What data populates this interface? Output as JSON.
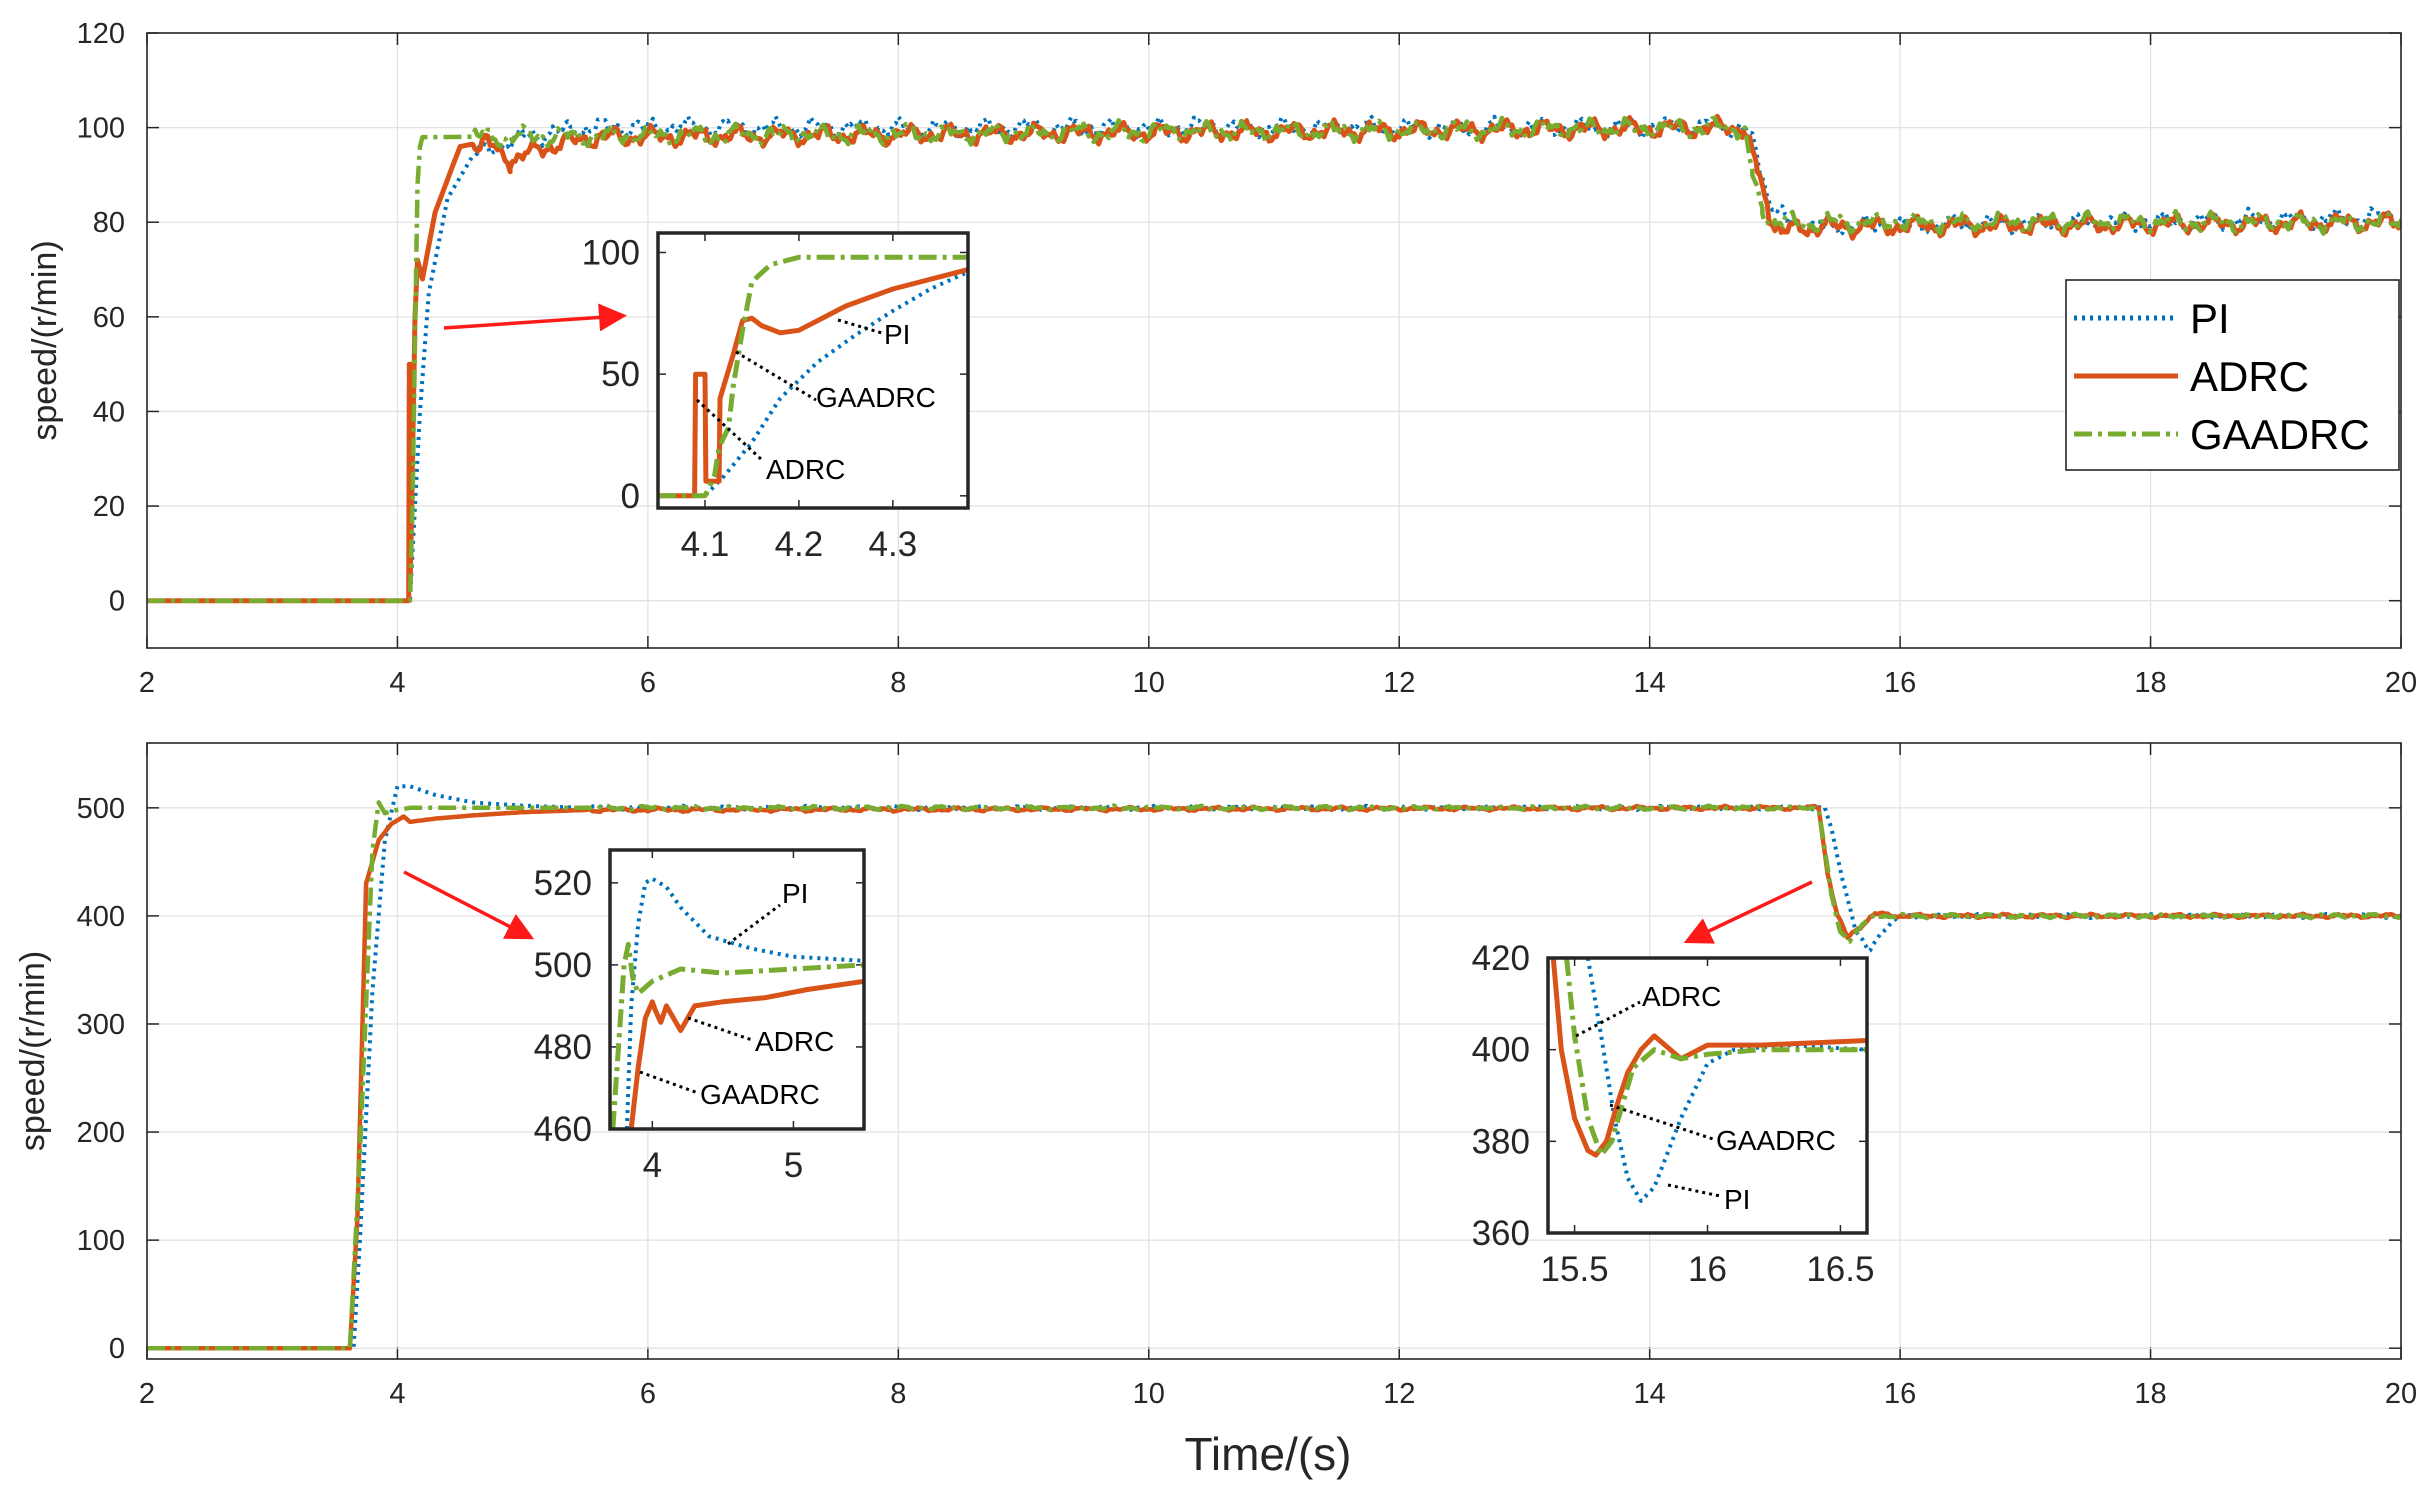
{
  "colors": {
    "PI": "#0072BD",
    "ADRC": "#D95319",
    "GAADRC": "#77AC30",
    "arrow": "#ff1a1a",
    "grid": "#e2e2e2",
    "axis": "#262626"
  },
  "legend": {
    "entries": [
      "PI",
      "ADRC",
      "GAADRC"
    ],
    "placement": "right"
  },
  "chart_data": [
    {
      "type": "line",
      "panel": "top",
      "title": "",
      "xlabel": "",
      "ylabel": "speed/(r/min)",
      "xlim": [
        2,
        20
      ],
      "ylim": [
        -10,
        120
      ],
      "xticks": [
        "2",
        "4",
        "6",
        "8",
        "10",
        "12",
        "14",
        "16",
        "18",
        "20"
      ],
      "yticks": [
        "0",
        "20",
        "40",
        "60",
        "80",
        "100",
        "120"
      ],
      "grid": true,
      "series": [
        {
          "name": "PI",
          "style": "dotted",
          "x": [
            2,
            4.1,
            4.12,
            4.18,
            4.25,
            4.4,
            4.6,
            5,
            5.5,
            14.75,
            14.85,
            14.95,
            15.1,
            15.4,
            20
          ],
          "y": [
            0,
            0,
            10,
            40,
            65,
            85,
            94,
            98,
            100,
            100,
            95,
            85,
            80,
            79,
            81
          ]
        },
        {
          "name": "ADRC",
          "style": "solid",
          "x": [
            2,
            4.09,
            4.095,
            4.1,
            4.103,
            4.12,
            4.14,
            4.16,
            4.2,
            4.3,
            4.5,
            4.7,
            4.9,
            5.2,
            5.6,
            14.75,
            14.85,
            14.95,
            15.05,
            15.3,
            20
          ],
          "y": [
            0,
            0,
            50,
            50,
            5,
            30,
            60,
            72,
            68,
            82,
            96,
            97,
            93,
            96,
            98,
            100,
            92,
            82,
            78,
            79,
            80
          ]
        },
        {
          "name": "GAADRC",
          "style": "dashdot",
          "x": [
            2,
            4.1,
            4.12,
            4.14,
            4.16,
            4.18,
            4.2,
            4.3,
            14.75,
            14.82,
            14.9,
            15,
            20
          ],
          "y": [
            0,
            0,
            20,
            55,
            88,
            96,
            98,
            98,
            100,
            90,
            82,
            80,
            80
          ]
        }
      ],
      "inset": {
        "xlim": [
          4.05,
          4.38
        ],
        "ylim": [
          -5,
          108
        ],
        "xticks": [
          "4.1",
          "4.2",
          "4.3"
        ],
        "yticks": [
          "0",
          "50",
          "100"
        ],
        "annotations": [
          "PI",
          "GAADRC",
          "ADRC"
        ],
        "series": [
          {
            "name": "PI",
            "x": [
              4.05,
              4.1,
              4.12,
              4.15,
              4.18,
              4.22,
              4.26,
              4.3,
              4.34,
              4.38
            ],
            "y": [
              0,
              0,
              8,
              22,
              40,
              55,
              66,
              76,
              85,
              92
            ]
          },
          {
            "name": "ADRC",
            "x": [
              4.05,
              4.089,
              4.09,
              4.1,
              4.101,
              4.115,
              4.116,
              4.13,
              4.14,
              4.15,
              4.16,
              4.18,
              4.2,
              4.25,
              4.3,
              4.38
            ],
            "y": [
              0,
              0,
              50,
              50,
              6,
              6,
              40,
              58,
              72,
              73,
              70,
              67,
              68,
              78,
              85,
              93
            ]
          },
          {
            "name": "GAADRC",
            "x": [
              4.05,
              4.1,
              4.11,
              4.115,
              4.125,
              4.13,
              4.14,
              4.15,
              4.17,
              4.2,
              4.25,
              4.3,
              4.38
            ],
            "y": [
              0,
              0,
              8,
              20,
              28,
              45,
              68,
              88,
              95,
              98,
              98,
              98,
              98
            ]
          }
        ]
      }
    },
    {
      "type": "line",
      "panel": "bottom",
      "title": "",
      "xlabel": "Time/(s)",
      "ylabel": "speed/(r/min)",
      "xlim": [
        2,
        20
      ],
      "ylim": [
        -10,
        560
      ],
      "xticks": [
        "2",
        "4",
        "6",
        "8",
        "10",
        "12",
        "14",
        "16",
        "18",
        "20"
      ],
      "yticks": [
        "0",
        "100",
        "200",
        "300",
        "400",
        "500"
      ],
      "grid": true,
      "series": [
        {
          "name": "PI",
          "style": "dotted",
          "x": [
            2,
            3.65,
            3.7,
            3.8,
            3.9,
            4,
            4.1,
            4.3,
            4.6,
            5,
            5.5,
            15.4,
            15.45,
            15.55,
            15.65,
            15.75,
            15.85,
            16,
            20
          ],
          "y": [
            0,
            0,
            100,
            330,
            470,
            520,
            520,
            512,
            505,
            502,
            500,
            500,
            480,
            430,
            385,
            367,
            385,
            400,
            400
          ]
        },
        {
          "name": "ADRC",
          "style": "solid",
          "x": [
            2,
            3.62,
            3.68,
            3.75,
            3.85,
            3.95,
            4.05,
            4.1,
            4.3,
            4.6,
            5,
            5.5,
            15.35,
            15.42,
            15.5,
            15.58,
            15.68,
            15.8,
            16,
            20
          ],
          "y": [
            0,
            0,
            120,
            430,
            470,
            485,
            492,
            487,
            490,
            493,
            496,
            498,
            500,
            440,
            400,
            380,
            390,
            402,
            400,
            400
          ]
        },
        {
          "name": "GAADRC",
          "style": "dashdot",
          "x": [
            2,
            3.62,
            3.7,
            3.8,
            3.85,
            3.9,
            3.95,
            4.1,
            4.5,
            5.5,
            15.35,
            15.45,
            15.52,
            15.6,
            15.7,
            15.8,
            16,
            20
          ],
          "y": [
            0,
            0,
            180,
            460,
            505,
            495,
            497,
            500,
            500,
            500,
            500,
            420,
            385,
            378,
            392,
            400,
            400,
            400
          ]
        }
      ],
      "insets": [
        {
          "xlim": [
            3.7,
            5.5
          ],
          "ylim": [
            460,
            528
          ],
          "xticks": [
            "4",
            "5"
          ],
          "yticks": [
            "460",
            "480",
            "500",
            "520"
          ],
          "annotations": [
            "PI",
            "ADRC",
            "GAADRC"
          ],
          "series": [
            {
              "name": "PI",
              "x": [
                3.82,
                3.85,
                3.9,
                3.95,
                4.0,
                4.1,
                4.2,
                4.4,
                4.7,
                5.0,
                5.5
              ],
              "y": [
                460,
                490,
                510,
                520,
                521,
                519,
                514,
                507,
                504,
                502,
                501
              ]
            },
            {
              "name": "ADRC",
              "x": [
                3.85,
                3.9,
                3.95,
                4.0,
                4.02,
                4.06,
                4.1,
                4.2,
                4.3,
                4.5,
                4.8,
                5.1,
                5.5
              ],
              "y": [
                460,
                475,
                487,
                491,
                489,
                486,
                490,
                484,
                490,
                491,
                492,
                494,
                496
              ]
            },
            {
              "name": "GAADRC",
              "x": [
                3.72,
                3.76,
                3.8,
                3.83,
                3.86,
                3.9,
                4.0,
                4.2,
                4.5,
                5.0,
                5.5
              ],
              "y": [
                460,
                480,
                500,
                505,
                497,
                493,
                496,
                499,
                498,
                499,
                500
              ]
            }
          ]
        },
        {
          "xlim": [
            15.4,
            16.6
          ],
          "ylim": [
            360,
            420
          ],
          "xticks": [
            "15.5",
            "16",
            "16.5"
          ],
          "yticks": [
            "360",
            "380",
            "400",
            "420"
          ],
          "annotations": [
            "ADRC",
            "GAADRC",
            "PI"
          ],
          "series": [
            {
              "name": "PI",
              "x": [
                15.55,
                15.6,
                15.65,
                15.7,
                15.75,
                15.8,
                15.9,
                16.0,
                16.1,
                16.3,
                16.6
              ],
              "y": [
                420,
                403,
                385,
                372,
                367,
                370,
                385,
                397,
                400,
                401,
                400
              ]
            },
            {
              "name": "ADRC",
              "x": [
                15.42,
                15.45,
                15.5,
                15.55,
                15.58,
                15.62,
                15.66,
                15.7,
                15.75,
                15.8,
                15.9,
                16.0,
                16.2,
                16.6
              ],
              "y": [
                420,
                400,
                385,
                378,
                377,
                380,
                388,
                395,
                400,
                403,
                398,
                401,
                401,
                402
              ]
            },
            {
              "name": "GAADRC",
              "x": [
                15.47,
                15.5,
                15.55,
                15.6,
                15.64,
                15.68,
                15.72,
                15.8,
                15.9,
                16.0,
                16.2,
                16.6
              ],
              "y": [
                420,
                403,
                385,
                377,
                380,
                388,
                396,
                400,
                398,
                399,
                400,
                400
              ]
            }
          ]
        }
      ]
    }
  ]
}
